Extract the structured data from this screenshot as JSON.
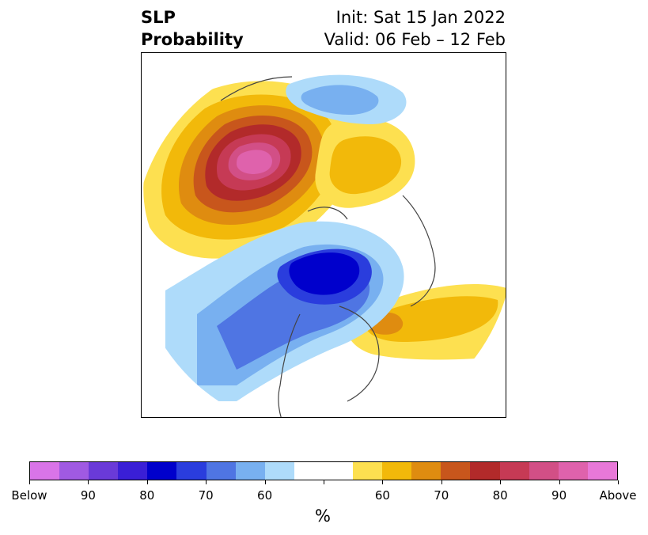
{
  "title": {
    "variable": "SLP",
    "product": "Probability",
    "init": "Init: Sat 15 Jan 2022",
    "valid": "Valid: 06 Feb – 12 Feb"
  },
  "colorbar": {
    "unit": "%",
    "colors": [
      "#d974e8",
      "#a05ae2",
      "#6a3ad8",
      "#3a1fd6",
      "#0000cc",
      "#2a3ddd",
      "#4f75e3",
      "#78b0f0",
      "#aedbfa",
      "#ffffff",
      "#ffffff",
      "#fde050",
      "#f2b90a",
      "#df8c10",
      "#c8561c",
      "#b22a2a",
      "#c63a55",
      "#d24f86",
      "#df62ac",
      "#e878d8"
    ],
    "tick_labels": [
      "Below",
      "90",
      "80",
      "70",
      "60",
      "",
      "",
      "60",
      "70",
      "80",
      "90",
      "Above"
    ]
  },
  "map_features": {
    "projection": "north-polar-stereographic",
    "below_normal_anomaly": "blue — centered over northern Canada / Arctic, extending south over the contiguous United States",
    "above_normal_anomaly": "red/magenta — centered over eastern Siberia / Bering region; yellow over northern Atlantic and northern Europe"
  }
}
